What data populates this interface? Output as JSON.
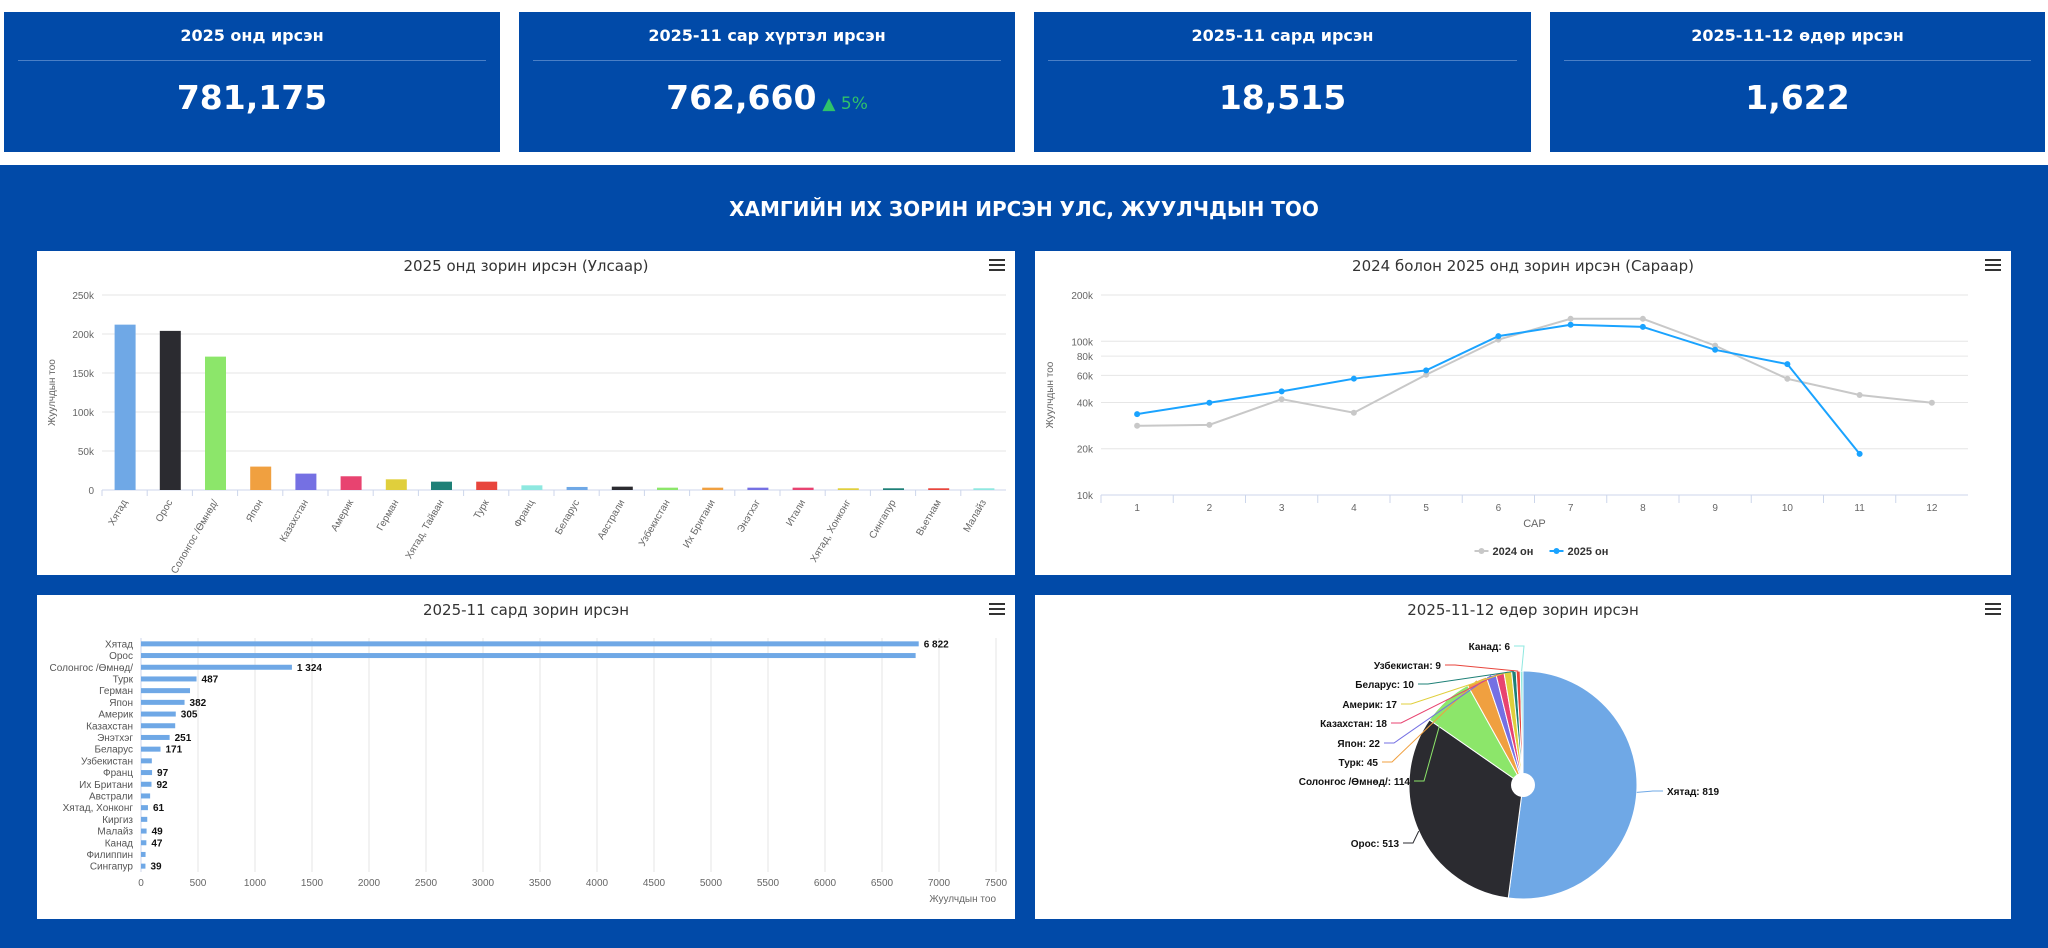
{
  "cards": [
    {
      "title": "2025 онд ирсэн",
      "value": "781,175"
    },
    {
      "title": "2025-11 сар хүртэл ирсэн",
      "value": "762,660",
      "trend": "5%"
    },
    {
      "title": "2025-11 сард ирсэн",
      "value": "18,515"
    },
    {
      "title": "2025-11-12 өдөр ирсэн",
      "value": "1,622"
    }
  ],
  "colors": {
    "brand": "#014aa8",
    "trend_up": "#2fc26a"
  },
  "section_title": "ХАМГИЙН ИХ ЗОРИН ИРСЭН УЛС, ЖУУЛЧДЫН ТОО",
  "menu_icon": "hamburger-menu-icon",
  "chart_data": [
    {
      "type": "bar",
      "title": "2025 онд зорин ирсэн (Улсаар)",
      "ylabel": "Жуулчдын тоо",
      "xlabel": "",
      "ylim": [
        0,
        250000
      ],
      "yticks": [
        "0",
        "50k",
        "100k",
        "150k",
        "200k",
        "250k"
      ],
      "categories": [
        "Хятад",
        "Орос",
        "Солонгос /Өмнөд/",
        "Япон",
        "Казахстан",
        "Америк",
        "Герман",
        "Хятад, Тайван",
        "Турк",
        "Франц",
        "Беларус",
        "Австрали",
        "Узбекистан",
        "Их Британи",
        "Энэтхэг",
        "Итали",
        "Хятад, Хонконг",
        "Сингапур",
        "Вьетнам",
        "Малайз"
      ],
      "values": [
        212000,
        204000,
        171000,
        30000,
        21000,
        17600,
        13700,
        10700,
        10700,
        6000,
        3900,
        4300,
        3000,
        3000,
        3000,
        3000,
        2200,
        2200,
        2200,
        2200
      ],
      "colors": [
        "#6fa8e6",
        "#2b2b30",
        "#8ce66a",
        "#f0a040",
        "#7570e3",
        "#e84370",
        "#e0cf3c",
        "#1e8077",
        "#e8453c",
        "#8ee8e0",
        "#6fa8e6",
        "#2b2b30",
        "#8ce66a",
        "#f0a040",
        "#7570e3",
        "#e84370",
        "#e0cf3c",
        "#1e8077",
        "#e8453c",
        "#8ee8e0"
      ]
    },
    {
      "type": "line",
      "title": "2024 болон 2025 онд зорин ирсэн (Сараар)",
      "ylabel": "Жуулчдын тоо",
      "xlabel": "САР",
      "yscale": "log",
      "ylim": [
        10000,
        200000
      ],
      "yticks": [
        {
          "v": 10000,
          "l": "10k"
        },
        {
          "v": 20000,
          "l": "20k"
        },
        {
          "v": 40000,
          "l": "40k"
        },
        {
          "v": 60000,
          "l": "60k"
        },
        {
          "v": 80000,
          "l": "80k"
        },
        {
          "v": 100000,
          "l": "100k"
        },
        {
          "v": 200000,
          "l": "200k"
        }
      ],
      "x": [
        "1",
        "2",
        "3",
        "4",
        "5",
        "6",
        "7",
        "8",
        "9",
        "10",
        "11",
        "12"
      ],
      "series": [
        {
          "name": "2024 он",
          "color": "#c8c8c8",
          "values": [
            28200,
            28600,
            42000,
            34300,
            60600,
            102500,
            140000,
            140000,
            93700,
            57000,
            44700,
            39800
          ]
        },
        {
          "name": "2025 он",
          "color": "#1aa3ff",
          "values": [
            33600,
            39800,
            47200,
            57100,
            64700,
            108000,
            128000,
            124000,
            88000,
            71000,
            18515,
            null
          ]
        }
      ],
      "legend": "bottom-center"
    },
    {
      "type": "bar",
      "orientation": "horizontal",
      "title": "2025-11 сард зорин ирсэн",
      "xlabel": "Жуулчдын тоо",
      "xlim": [
        0,
        7500
      ],
      "xticks": [
        "0",
        "500",
        "1000",
        "1500",
        "2000",
        "2500",
        "3000",
        "3500",
        "4000",
        "4500",
        "5000",
        "5500",
        "6000",
        "6500",
        "7000",
        "7500"
      ],
      "categories": [
        "Хятад",
        "Орос",
        "Солонгос /Өмнөд/",
        "Турк",
        "Герман",
        "Япон",
        "Америк",
        "Казахстан",
        "Энэтхэг",
        "Беларус",
        "Узбекистан",
        "Франц",
        "Их Британи",
        "Австрали",
        "Хятад, Хонконг",
        "Киргиз",
        "Малайз",
        "Канад",
        "Филиппин",
        "Сингапур"
      ],
      "values": [
        6822,
        6795,
        1324,
        487,
        430,
        382,
        305,
        300,
        251,
        171,
        95,
        97,
        92,
        80,
        61,
        55,
        49,
        47,
        40,
        39
      ],
      "data_labels": [
        "6 822",
        null,
        "1 324",
        "487",
        null,
        "382",
        "305",
        null,
        "251",
        "171",
        null,
        "97",
        "92",
        null,
        "61",
        null,
        "49",
        "47",
        null,
        "39"
      ],
      "color": "#6fa8e6"
    },
    {
      "type": "pie",
      "title": "2025-11-12 өдөр зорин ирсэн",
      "slices": [
        {
          "name": "Хятад",
          "value": 819,
          "label": "Хятад: 819",
          "color": "#6fa8e6"
        },
        {
          "name": "Орос",
          "value": 513,
          "label": "Орос: 513",
          "color": "#2b2b30"
        },
        {
          "name": "Солонгос /Өмнөд/",
          "value": 114,
          "label": "Солонгос /Өмнөд/: 114",
          "color": "#8ce66a"
        },
        {
          "name": "Турк",
          "value": 45,
          "label": "Турк: 45",
          "color": "#f0a040"
        },
        {
          "name": "Япон",
          "value": 22,
          "label": "Япон: 22",
          "color": "#7570e3"
        },
        {
          "name": "Казахстан",
          "value": 18,
          "label": "Казахстан: 18",
          "color": "#e84370"
        },
        {
          "name": "Америк",
          "value": 17,
          "label": "Америк: 17",
          "color": "#e0cf3c"
        },
        {
          "name": "Беларус",
          "value": 10,
          "label": "Беларус: 10",
          "color": "#1e8077"
        },
        {
          "name": "Узбекистан",
          "value": 9,
          "label": "Узбекистан: 9",
          "color": "#e8453c"
        },
        {
          "name": "Канад",
          "value": 6,
          "label": "Канад: 6",
          "color": "#8ee8e0"
        }
      ]
    }
  ]
}
